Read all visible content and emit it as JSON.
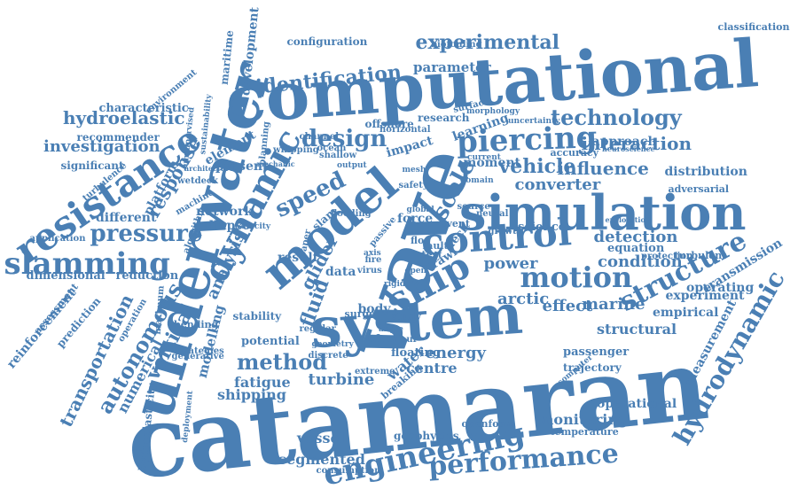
{
  "accent_color": "#4a7fb4",
  "words": [
    {
      "text": "catamaran",
      "color": "#4a7fb4"
    },
    {
      "text": "computational",
      "color": "#4a7fb4"
    },
    {
      "text": "system",
      "color": "#4a7fb4"
    },
    {
      "text": "wave",
      "color": "#4a7fb4"
    },
    {
      "text": "simulation",
      "color": "#4a7fb4"
    },
    {
      "text": "underwater",
      "color": "#4a7fb4"
    },
    {
      "text": "model",
      "color": "#4a7fb4"
    },
    {
      "text": "dynamic",
      "color": "#4a7fb4"
    },
    {
      "text": "resistance",
      "color": "#4a7fb4"
    },
    {
      "text": "control",
      "color": "#4a7fb4"
    },
    {
      "text": "ship",
      "color": "#4a7fb4"
    },
    {
      "text": "slamming",
      "color": "#4a7fb4"
    },
    {
      "text": "engineering",
      "color": "#4a7fb4"
    },
    {
      "text": "piercing",
      "color": "#4a7fb4"
    },
    {
      "text": "performance",
      "color": "#4a7fb4"
    },
    {
      "text": "hydrodynamic",
      "color": "#4a7fb4"
    },
    {
      "text": "motion",
      "color": "#4a7fb4"
    },
    {
      "text": "structure",
      "color": "#4a7fb4"
    },
    {
      "text": "pressure",
      "color": "#4a7fb4"
    },
    {
      "text": "autonomous",
      "color": "#4a7fb4"
    },
    {
      "text": "speed",
      "color": "#4a7fb4"
    },
    {
      "text": "design",
      "color": "#4a7fb4"
    },
    {
      "text": "method",
      "color": "#4a7fb4"
    },
    {
      "text": "technology",
      "color": "#4a7fb4"
    },
    {
      "text": "experimental",
      "color": "#4a7fb4"
    },
    {
      "text": "identification",
      "color": "#4a7fb4"
    },
    {
      "text": "hydroelastic",
      "color": "#4a7fb4"
    },
    {
      "text": "investigation",
      "color": "#4a7fb4"
    },
    {
      "text": "transportation",
      "color": "#4a7fb4"
    },
    {
      "text": "response",
      "color": "#4a7fb4"
    },
    {
      "text": "vehicle",
      "color": "#4a7fb4"
    },
    {
      "text": "influence",
      "color": "#4a7fb4"
    },
    {
      "text": "interaction",
      "color": "#4a7fb4"
    },
    {
      "text": "converter",
      "color": "#4a7fb4"
    },
    {
      "text": "detection",
      "color": "#4a7fb4"
    },
    {
      "text": "condition",
      "color": "#4a7fb4"
    },
    {
      "text": "power",
      "color": "#4a7fb4"
    },
    {
      "text": "arctic",
      "color": "#4a7fb4"
    },
    {
      "text": "effect",
      "color": "#4a7fb4"
    },
    {
      "text": "marine",
      "color": "#4a7fb4"
    },
    {
      "text": "structural",
      "color": "#4a7fb4"
    },
    {
      "text": "energy",
      "color": "#4a7fb4"
    },
    {
      "text": "turbine",
      "color": "#4a7fb4"
    },
    {
      "text": "fatigue",
      "color": "#4a7fb4"
    },
    {
      "text": "shipping",
      "color": "#4a7fb4"
    },
    {
      "text": "monitoring",
      "color": "#4a7fb4"
    },
    {
      "text": "segmented",
      "color": "#4a7fb4"
    },
    {
      "text": "vertical",
      "color": "#4a7fb4"
    },
    {
      "text": "analysis",
      "color": "#4a7fb4"
    },
    {
      "text": "fluid",
      "color": "#4a7fb4"
    },
    {
      "text": "scale",
      "color": "#4a7fb4"
    },
    {
      "text": "glider",
      "color": "#4a7fb4"
    },
    {
      "text": "approach",
      "color": "#4a7fb4"
    },
    {
      "text": "distribution",
      "color": "#4a7fb4"
    },
    {
      "text": "experiment",
      "color": "#4a7fb4"
    },
    {
      "text": "empirical",
      "color": "#4a7fb4"
    },
    {
      "text": "operational",
      "color": "#4a7fb4"
    },
    {
      "text": "passenger",
      "color": "#4a7fb4"
    },
    {
      "text": "measurement",
      "color": "#4a7fb4"
    },
    {
      "text": "transmission",
      "color": "#4a7fb4"
    },
    {
      "text": "operating",
      "color": "#4a7fb4"
    },
    {
      "text": "centre",
      "color": "#4a7fb4"
    },
    {
      "text": "water",
      "color": "#4a7fb4"
    },
    {
      "text": "vessel",
      "color": "#4a7fb4"
    },
    {
      "text": "numerical",
      "color": "#4a7fb4"
    },
    {
      "text": "modelling",
      "color": "#4a7fb4"
    },
    {
      "text": "parameter",
      "color": "#4a7fb4"
    },
    {
      "text": "configuration",
      "color": "#4a7fb4"
    },
    {
      "text": "development",
      "color": "#4a7fb4"
    },
    {
      "text": "maritime",
      "color": "#4a7fb4"
    },
    {
      "text": "characteristic",
      "color": "#4a7fb4"
    },
    {
      "text": "recommender",
      "color": "#4a7fb4"
    },
    {
      "text": "significant",
      "color": "#4a7fb4"
    },
    {
      "text": "platform",
      "color": "#4a7fb4"
    },
    {
      "text": "different",
      "color": "#4a7fb4"
    },
    {
      "text": "dimensional",
      "color": "#4a7fb4"
    },
    {
      "text": "reduction",
      "color": "#4a7fb4"
    },
    {
      "text": "network",
      "color": "#4a7fb4"
    },
    {
      "text": "collapse",
      "color": "#4a7fb4"
    },
    {
      "text": "present",
      "color": "#4a7fb4"
    },
    {
      "text": "element",
      "color": "#4a7fb4"
    },
    {
      "text": "reinforcement",
      "color": "#4a7fb4"
    },
    {
      "text": "prediction",
      "color": "#4a7fb4"
    },
    {
      "text": "hydroelasticity",
      "color": "#4a7fb4"
    },
    {
      "text": "environment",
      "color": "#4a7fb4"
    },
    {
      "text": "assessment",
      "color": "#4a7fb4"
    },
    {
      "text": "research",
      "color": "#4a7fb4"
    },
    {
      "text": "offshore",
      "color": "#4a7fb4"
    },
    {
      "text": "impact",
      "color": "#4a7fb4"
    },
    {
      "text": "learning",
      "color": "#4a7fb4"
    },
    {
      "text": "moment",
      "color": "#4a7fb4"
    },
    {
      "text": "science",
      "color": "#4a7fb4"
    },
    {
      "text": "equation",
      "color": "#4a7fb4"
    },
    {
      "text": "trajectory",
      "color": "#4a7fb4"
    },
    {
      "text": "deck",
      "color": "#4a7fb4"
    },
    {
      "text": "force",
      "color": "#4a7fb4"
    },
    {
      "text": "data",
      "color": "#4a7fb4"
    },
    {
      "text": "result",
      "color": "#4a7fb4"
    },
    {
      "text": "floating",
      "color": "#4a7fb4"
    },
    {
      "text": "body",
      "color": "#4a7fb4"
    },
    {
      "text": "potential",
      "color": "#4a7fb4"
    },
    {
      "text": "stability",
      "color": "#4a7fb4"
    },
    {
      "text": "geophysics",
      "color": "#4a7fb4"
    },
    {
      "text": "temperature",
      "color": "#4a7fb4"
    },
    {
      "text": "consumption",
      "color": "#4a7fb4"
    },
    {
      "text": "openfoam",
      "color": "#4a7fb4"
    },
    {
      "text": "classification",
      "color": "#4a7fb4"
    },
    {
      "text": "biofouling",
      "color": "#4a7fb4"
    },
    {
      "text": "surface",
      "color": "#4a7fb4"
    },
    {
      "text": "uncertainty",
      "color": "#4a7fb4"
    },
    {
      "text": "accuracy",
      "color": "#4a7fb4"
    },
    {
      "text": "adversarial",
      "color": "#4a7fb4"
    },
    {
      "text": "protection",
      "color": "#4a7fb4"
    },
    {
      "text": "turbulent",
      "color": "#4a7fb4"
    },
    {
      "text": "strategies",
      "color": "#4a7fb4"
    },
    {
      "text": "generative",
      "color": "#4a7fb4"
    },
    {
      "text": "bending",
      "color": "#4a7fb4"
    },
    {
      "text": "deployment",
      "color": "#4a7fb4"
    },
    {
      "text": "breaking",
      "color": "#4a7fb4"
    },
    {
      "text": "extreme",
      "color": "#4a7fb4"
    },
    {
      "text": "regular",
      "color": "#4a7fb4"
    },
    {
      "text": "trawl",
      "color": "#4a7fb4"
    },
    {
      "text": "fault",
      "color": "#4a7fb4"
    },
    {
      "text": "surge",
      "color": "#4a7fb4"
    },
    {
      "text": "channel",
      "color": "#4a7fb4"
    },
    {
      "text": "wetdeck",
      "color": "#4a7fb4"
    },
    {
      "text": "machine",
      "color": "#4a7fb4"
    },
    {
      "text": "velocity",
      "color": "#4a7fb4"
    },
    {
      "text": "algorithm",
      "color": "#4a7fb4"
    },
    {
      "text": "operation",
      "color": "#4a7fb4"
    },
    {
      "text": "maximum",
      "color": "#4a7fb4"
    },
    {
      "text": "application",
      "color": "#4a7fb4"
    },
    {
      "text": "turbulence",
      "color": "#4a7fb4"
    },
    {
      "text": "study",
      "color": "#4a7fb4"
    },
    {
      "text": "event",
      "color": "#4a7fb4"
    },
    {
      "text": "growth",
      "color": "#4a7fb4"
    },
    {
      "text": "planning",
      "color": "#4a7fb4"
    },
    {
      "text": "sustainability",
      "color": "#4a7fb4"
    },
    {
      "text": "fire",
      "color": "#4a7fb4"
    },
    {
      "text": "virus",
      "color": "#4a7fb4"
    },
    {
      "text": "floe",
      "color": "#4a7fb4"
    },
    {
      "text": "test",
      "color": "#4a7fb4"
    },
    {
      "text": "horizontal",
      "color": "#4a7fb4"
    },
    {
      "text": "paper",
      "color": "#4a7fb4"
    },
    {
      "text": "ocean",
      "color": "#4a7fb4"
    },
    {
      "text": "shallow",
      "color": "#4a7fb4"
    },
    {
      "text": "output",
      "color": "#4a7fb4"
    },
    {
      "text": "global",
      "color": "#4a7fb4"
    },
    {
      "text": "source",
      "color": "#4a7fb4"
    },
    {
      "text": "domain",
      "color": "#4a7fb4"
    },
    {
      "text": "neural",
      "color": "#4a7fb4"
    },
    {
      "text": "axis",
      "color": "#4a7fb4"
    },
    {
      "text": "slam",
      "color": "#4a7fb4"
    },
    {
      "text": "mesh",
      "color": "#4a7fb4"
    },
    {
      "text": "safety",
      "color": "#4a7fb4"
    },
    {
      "text": "current",
      "color": "#4a7fb4"
    },
    {
      "text": "morphology",
      "color": "#4a7fb4"
    },
    {
      "text": "whipping",
      "color": "#4a7fb4"
    },
    {
      "text": "geometry",
      "color": "#4a7fb4"
    },
    {
      "text": "discrete",
      "color": "#4a7fb4"
    },
    {
      "text": "behaviour",
      "color": "#4a7fb4"
    },
    {
      "text": "angle",
      "color": "#4a7fb4"
    },
    {
      "text": "open",
      "color": "#4a7fb4"
    },
    {
      "text": "rigid",
      "color": "#4a7fb4"
    },
    {
      "text": "flooding",
      "color": "#4a7fb4"
    },
    {
      "text": "passive",
      "color": "#4a7fb4"
    },
    {
      "text": "neuroscience",
      "color": "#4a7fb4"
    },
    {
      "text": "exploration",
      "color": "#4a7fb4"
    },
    {
      "text": "computer",
      "color": "#4a7fb4"
    },
    {
      "text": "unsupervised",
      "color": "#4a7fb4"
    },
    {
      "text": "mechanic",
      "color": "#4a7fb4"
    },
    {
      "text": "architecture",
      "color": "#4a7fb4"
    }
  ]
}
